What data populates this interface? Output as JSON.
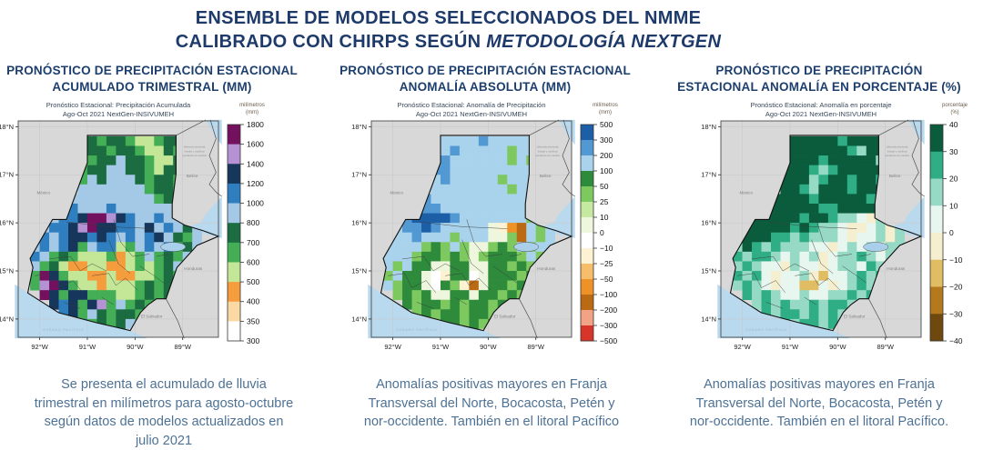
{
  "header": {
    "line1": "ENSEMBLE DE MODELOS SELECCIONADOS DEL NMME",
    "line2_normal": "CALIBRADO CON CHIRPS SEGÚN ",
    "line2_italic": "METODOLOGÍA NEXTGEN"
  },
  "axes": {
    "x": [
      "92°W",
      "91°W",
      "90°W",
      "89°W"
    ],
    "y": [
      "18°N",
      "17°N",
      "16°N",
      "15°N",
      "14°N"
    ]
  },
  "map_labels": {
    "mexico": "México",
    "belize": "Belice",
    "honduras": "Honduras",
    "el_salvador": "El Salvador",
    "ocean": "OCÉANO PACÍFICO",
    "note_lines": [
      "diferendo territorial,",
      "insular y marítimo",
      "pendiente de resolver"
    ]
  },
  "panels": [
    {
      "id": "accumulated",
      "title_lines": [
        "PRONÓSTICO DE PRECIPITACIÓN ESTACIONAL",
        "ACUMULADO TRIMESTRAL (MM)"
      ],
      "fig_title_lines": [
        "Pronóstico Estacional: Precipitación Acumulada",
        "Ago-Oct 2021  NextGen-INSIVUMEH"
      ],
      "colorbar": {
        "label_lines": [
          "milímetros",
          "(mm)"
        ],
        "ticks": [
          "1800",
          "1600",
          "1400",
          "1200",
          "1000",
          "800",
          "700",
          "600",
          "500",
          "400",
          "350",
          "300"
        ],
        "colors": [
          "#73115f",
          "#b592d3",
          "#17365c",
          "#2f7fc0",
          "#a3c9e6",
          "#1b6c41",
          "#43ae55",
          "#c3e796",
          "#f59c3c",
          "#fad9a2",
          "#ffffff"
        ]
      },
      "grid_key": "p1",
      "caption": "Se presenta el acumulado de lluvia trimestral en milímetros para agosto-octubre según datos de modelos actualizados en julio 2021"
    },
    {
      "id": "anomaly-mm",
      "title_lines": [
        "PRONÓSTICO DE PRECIPITACIÓN ESTACIONAL",
        "ANOMALÍA ABSOLUTA (MM)"
      ],
      "fig_title_lines": [
        "Pronóstico Estacional: Anomalía de Precipitación",
        "Ago-Oct 2021 NextGen-INSIVUMEH"
      ],
      "colorbar": {
        "label_lines": [
          "milímetros",
          "(mm)"
        ],
        "ticks": [
          "500",
          "300",
          "200",
          "100",
          "50",
          "25",
          "10",
          "0",
          "−10",
          "−25",
          "−50",
          "−100",
          "−200",
          "−300",
          "−500"
        ],
        "colors": [
          "#1c5fa6",
          "#5299d3",
          "#a9d3ec",
          "#2e8b3b",
          "#7ec860",
          "#c6e9a2",
          "#eef7dd",
          "#ffffff",
          "#fdf2d2",
          "#f6bd6a",
          "#ee9227",
          "#b96a12",
          "#f2a285",
          "#d7352a"
        ]
      },
      "grid_key": "p2",
      "caption": "Anomalías positivas mayores en Franja Transversal del Norte, Bocacosta, Petén y nor-occidente. También en el litoral Pacífico"
    },
    {
      "id": "anomaly-pct",
      "title_lines": [
        "PRONÓSTICO DE PRECIPITACIÓN",
        "ESTACIONAL ANOMALÍA EN PORCENTAJE (%)"
      ],
      "fig_title_lines": [
        "Pronóstico Estacional: Anomalía en porcentaje",
        "Ago-Oct 2021 NextGen-INSIVUMEH"
      ],
      "colorbar": {
        "label_lines": [
          "porcentaje",
          "(%)"
        ],
        "ticks": [
          "40",
          "30",
          "20",
          "10",
          "0",
          "−10",
          "−20",
          "−30",
          "−40"
        ],
        "colors": [
          "#0a5c3c",
          "#2fae85",
          "#96d9c4",
          "#e7f6ee",
          "#f5efcf",
          "#e0bd62",
          "#b5791d",
          "#6e480e"
        ]
      },
      "grid_key": "p3",
      "caption": "Anomalías positivas mayores en Franja Transversal del Norte, Bocacosta, Petén y nor-occidente. También en el litoral Pacífico."
    }
  ],
  "raster": {
    "lon0": -92.4,
    "lat0": 18.0,
    "cell_deg": 0.2,
    "cols": 21,
    "rows": 22,
    "palettes": {
      "p1": {
        "P": "#73115f",
        "v": "#b592d3",
        "N": "#17365c",
        "B": "#2f7fc0",
        "b": "#a3c9e6",
        "G": "#1b6c41",
        "g": "#43ae55",
        "l": "#c3e796",
        "O": "#f59c3c",
        "o": "#fad9a2",
        "w": "#ffffff"
      },
      "p2": {
        "B": "#1c5fa6",
        "M": "#5299d3",
        "b": "#a9d3ec",
        "G": "#2e8b3b",
        "g": "#7ec860",
        "l": "#c6e9a2",
        "w": "#eef7dd",
        "W": "#ffffff",
        "c": "#fdf2d2",
        "y": "#f6bd6a",
        "O": "#ee9227",
        "D": "#b96a12",
        "p": "#f2a285",
        "r": "#d7352a"
      },
      "p3": {
        "D": "#0a5c3c",
        "T": "#2fae85",
        "t": "#96d9c4",
        "m": "#e7f6ee",
        "c": "#f5efcf",
        "n": "#e0bd62",
        "B": "#b5791d",
        "K": "#6e480e"
      }
    },
    "grids": {
      "p1": [
        ".....................",
        ".......GgGGgllgGG....",
        ".......GGgGGgllGg....",
        ".......gGGbGGgllG....",
        "......gGGbbGGglGG....",
        "......gbGbbbGgGGg....",
        "......bbbbbbbgGGg....",
        ".....bbbbbbbbbgGb....",
        ".....BbbbBbbbbbbG....",
        "...bBBNPPvNBbbBbbG...",
        "..bBBNvPNNBBbNbBbGb..",
        "..BbBNNBNBbBbBNbGgb..",
        ".bBbBNgbBBlgbBbBgGb..",
        ".BbgGglllgOlgbgGgbG..",
        ".bgGlOOllOOlglgGbGg..",
        ".gPNgllOOlOOllgGgGG..",
        ".gvPNgllOlllgGgGgG...",
        "..PNgNNgggllgGgGgg...",
        "...NBNgNvgbgGgGgG....",
        "....BNgbGgGGgbG......",
        ".....gBgGgGbg........",
        "....................."
      ],
      "p2": [
        ".....................",
        ".......bbbbMbbbbb....",
        ".......bMbbbbbgbb....",
        ".......Mbbbbbbgbg....",
        "......MMbbbbbbbbb....",
        "......bMbbbbbgbbb....",
        "......bbbbbbbbgbb....",
        ".....MbbbbbbbbbbM....",
        ".....MMbbbbbbbbbb....",
        "...MBBBBMbbbbbbbgb...",
        "..bMMBMbbbbbwcODbgb..",
        "..bbMbbbgbbbwwgDbgb..",
        ".bbbbgGgbgwwgGgbgbb..",
        ".bbbgGGgGgwgGGGgbgb..",
        ".bgbGGwwGGwwGGgGgGg..",
        ".gbGGwWcGGWwGGGgGgG..",
        ".bgGGwWGgcDwGGgGgG...",
        "..gGgGwwGGwGGgGgGb...",
        "...GgGGgGgGGgGgGg....",
        "....gGgGGgGGgGg......",
        ".....GgGGgGgG........",
        "....................."
      ],
      "p3": [
        ".....................",
        ".......DDDDDTDDDD....",
        ".......DDDDDDTtDD....",
        ".......DDDTDDDDDt....",
        "......DDDTtTDDDDD....",
        "......DDDtTDDTDDT....",
        "......DDTtDDDTDDD....",
        ".....DDDDTDDDDDTD....",
        ".....DDDDDTTDDDDt....",
        "...DDDDDTDDTttmctD...",
        "..DDDDDTDTttmccmtct..",
        "..DDDTTtTtttmcmmtct..",
        ".tDTtTtttmmcmtmtctt..",
        ".TtTTtmtmtcmttTtmtT..",
        ".tTtmmctmmcmttmTtTt..",
        ".TtTmcmmtcnmmtTtTtT..",
        ".tTtmcmmnnmcmtTtTt...",
        "..TtTtmmtmmttTtTtT...",
        "...tTtTttTtTTtTtT....",
        "....TtTTtTtTtTT......",
        ".....tTtTTtTt........",
        "....................."
      ]
    }
  }
}
